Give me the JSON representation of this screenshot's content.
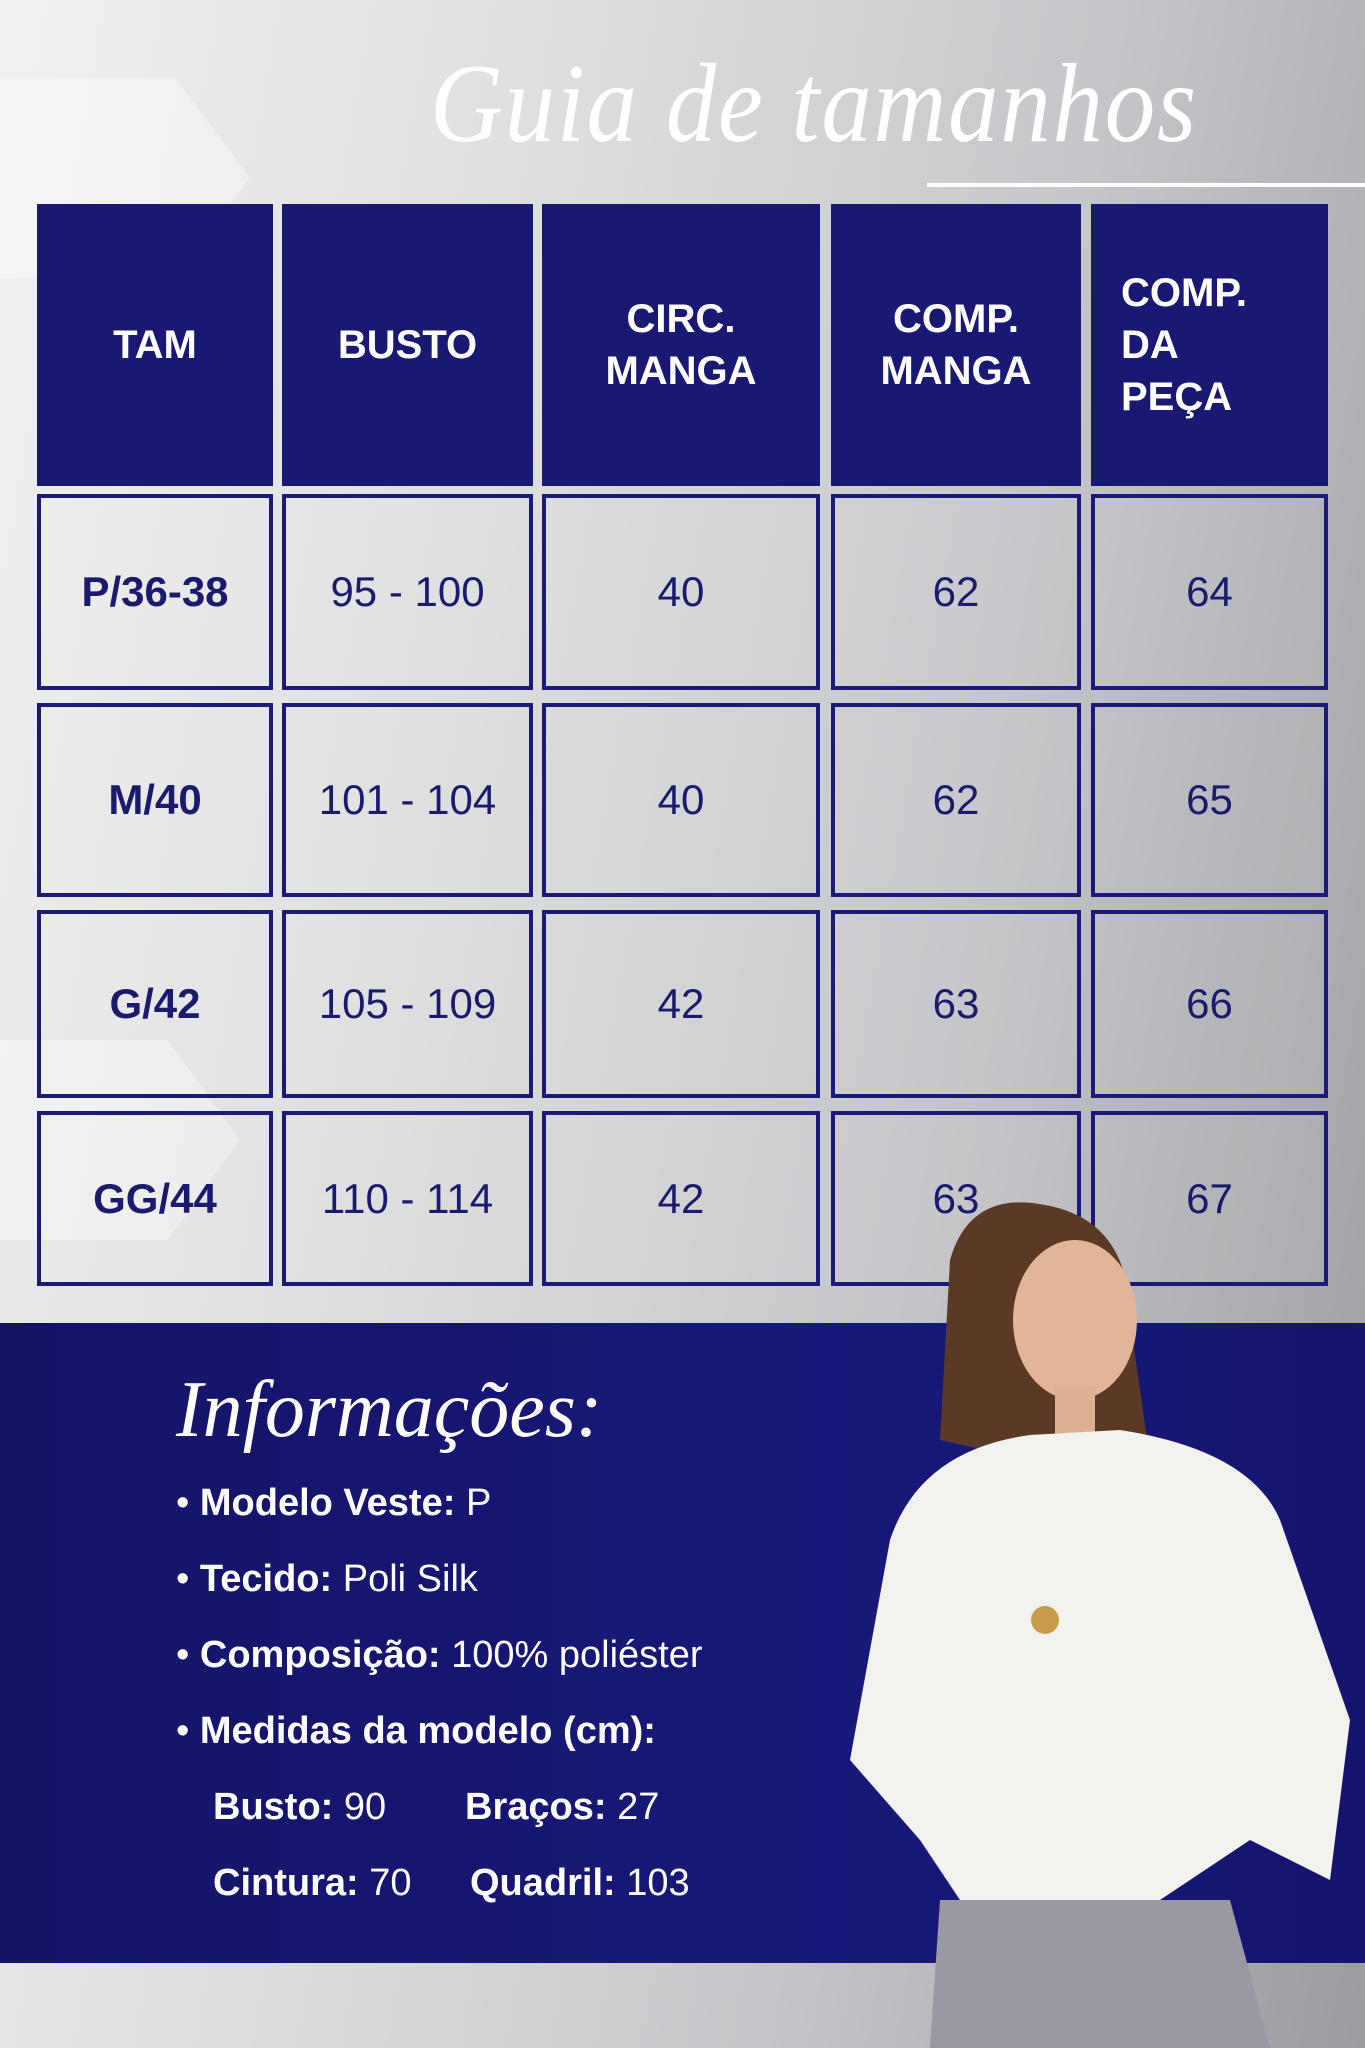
{
  "title": "Guia de tamanhos",
  "table": {
    "headers": [
      "TAM",
      "BUSTO",
      "CIRC.\nMANGA",
      "COMP.\nMANGA",
      "COMP.\nDA\nPEÇA"
    ],
    "rows": [
      [
        "P/36-38",
        "95 - 100",
        "40",
        "62",
        "64"
      ],
      [
        "M/40",
        "101 - 104",
        "40",
        "62",
        "65"
      ],
      [
        "G/42",
        "105 - 109",
        "42",
        "63",
        "66"
      ],
      [
        "GG/44",
        "110 - 114",
        "42",
        "63",
        "67"
      ]
    ]
  },
  "info": {
    "heading": "Informações:",
    "bullets": [
      {
        "label": "Modelo Veste:",
        "value": "P"
      },
      {
        "label": "Tecido:",
        "value": "Poli Silk"
      },
      {
        "label": "Composição:",
        "value": "100% poliéster"
      },
      {
        "label": "Medidas da modelo (cm):",
        "value": ""
      }
    ],
    "measures": [
      {
        "label": "Busto:",
        "value": "90"
      },
      {
        "label": "Braços:",
        "value": "27"
      },
      {
        "label": "Cintura:",
        "value": "70"
      },
      {
        "label": "Quadril:",
        "value": "103"
      }
    ]
  },
  "colors": {
    "navy": "#191973",
    "background": "#d8d9da",
    "text": "#ffffff"
  }
}
